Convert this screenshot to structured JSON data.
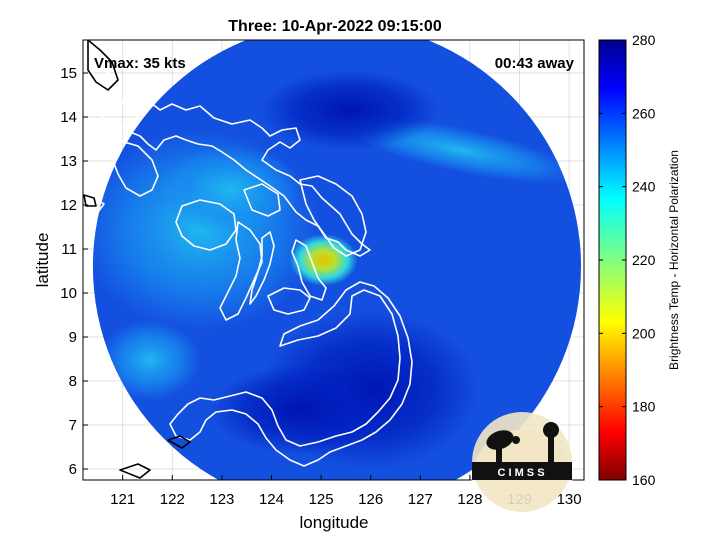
{
  "title": "Three: 10-Apr-2022 09:15:00",
  "annotations": {
    "vmax": "Vmax: 35 kts",
    "time_away": "00:43 away"
  },
  "axes": {
    "xlabel": "longitude",
    "ylabel": "latitude",
    "xlim": [
      120.2,
      130.3
    ],
    "ylim": [
      5.75,
      15.75
    ],
    "xticks": [
      "121",
      "122",
      "123",
      "124",
      "125",
      "126",
      "127",
      "128",
      "129",
      "130"
    ],
    "yticks": [
      "6",
      "7",
      "8",
      "9",
      "10",
      "11",
      "12",
      "13",
      "14",
      "15"
    ],
    "grid": true
  },
  "colorbar": {
    "label": "Brightness Temp - Horizontal Polarization",
    "min": 160,
    "max": 280,
    "ticks": [
      "160",
      "180",
      "200",
      "220",
      "240",
      "260",
      "280"
    ],
    "colormap": "jet"
  },
  "swath": {
    "center": [
      125.32,
      10.6
    ],
    "radius_deg": 4.92,
    "background_color": "#1450e0"
  },
  "warm_core": {
    "location": [
      125.05,
      10.75
    ],
    "temperature_min": 200
  },
  "logo": {
    "text": "C I M S S"
  },
  "colors": {
    "coastline": "#ffffff",
    "coastline_outside": "#000000",
    "frame": "#000000",
    "grid": "#d8d8d8"
  }
}
